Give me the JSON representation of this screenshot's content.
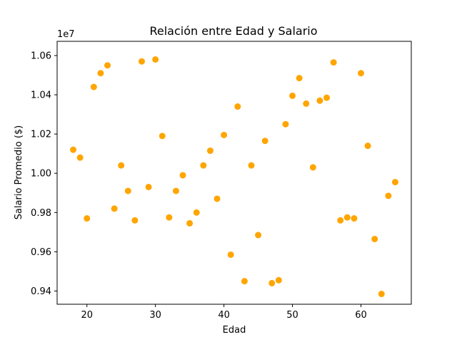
{
  "chart_data": {
    "type": "scatter",
    "title": "Relación entre Edad y Salario",
    "xlabel": "Edad",
    "ylabel": "Salario Promedio ($)",
    "y_offset_text": "1e7",
    "xlim": [
      15.65,
      67.35
    ],
    "ylim": [
      9.3325,
      10.6725
    ],
    "y_scale_note": "values in units of 1e7",
    "x_ticks": [
      20,
      30,
      40,
      50,
      60
    ],
    "x_tick_labels": [
      "20",
      "30",
      "40",
      "50",
      "60"
    ],
    "y_ticks": [
      9.4,
      9.6,
      9.8,
      10.0,
      10.2,
      10.4,
      10.6
    ],
    "y_tick_labels": [
      "0.94",
      "0.96",
      "0.98",
      "1.00",
      "1.02",
      "1.04",
      "1.06"
    ],
    "grid": false,
    "marker_color": "#FFA500",
    "series": [
      {
        "x": [
          18,
          19,
          20,
          21,
          22,
          23,
          24,
          25,
          26,
          27,
          28,
          29,
          30,
          31,
          32,
          33,
          34,
          35,
          36,
          37,
          38,
          39,
          40,
          41,
          42,
          43,
          44,
          45,
          46,
          47,
          48,
          49,
          50,
          51,
          52,
          53,
          54,
          55,
          56,
          57,
          58,
          59,
          60,
          61,
          62,
          63,
          64,
          65
        ],
        "y": [
          10.12,
          10.08,
          9.77,
          10.44,
          10.51,
          10.55,
          9.82,
          10.04,
          9.91,
          9.76,
          10.57,
          9.93,
          10.58,
          10.19,
          9.775,
          9.91,
          9.99,
          9.745,
          9.8,
          10.04,
          10.115,
          9.87,
          10.195,
          9.585,
          10.34,
          9.45,
          10.04,
          9.685,
          10.165,
          9.44,
          9.455,
          10.25,
          10.395,
          10.485,
          10.355,
          10.03,
          10.37,
          10.385,
          10.565,
          9.76,
          9.775,
          9.77,
          10.51,
          10.14,
          9.665,
          9.385,
          9.885,
          9.955
        ]
      }
    ]
  }
}
